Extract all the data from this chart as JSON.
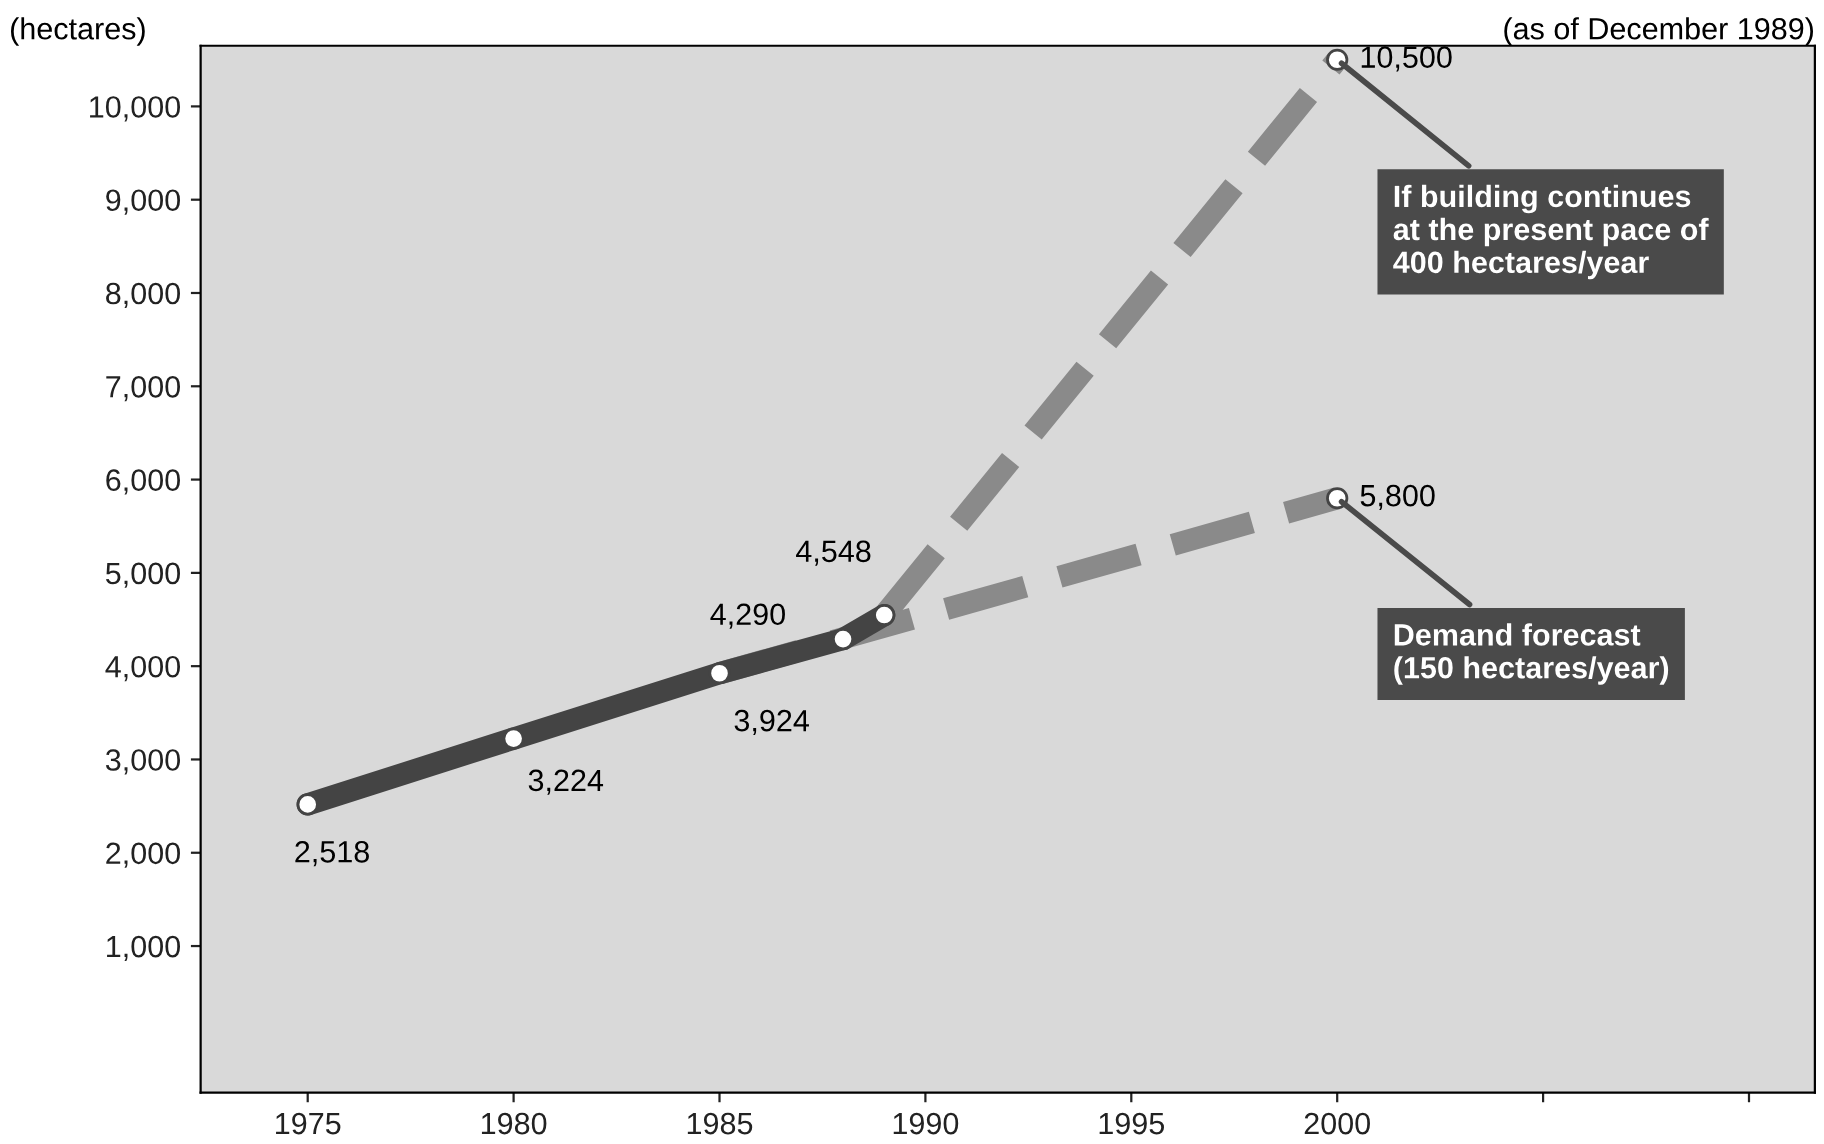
{
  "chart_data": {
    "type": "line",
    "ylabel": "(hectares)",
    "xlim": [
      1972.4,
      2011.6
    ],
    "ylim": [
      -570,
      10650
    ],
    "xticks": [
      1975,
      1980,
      1985,
      1990,
      1995,
      2000,
      {
        "value": 2005,
        "label": null
      },
      {
        "value": 2010,
        "label": null
      }
    ],
    "yticks": [
      {
        "value": 1000,
        "label": "1,000"
      },
      {
        "value": 2000,
        "label": "2,000"
      },
      {
        "value": 3000,
        "label": "3,000"
      },
      {
        "value": 4000,
        "label": "4,000"
      },
      {
        "value": 5000,
        "label": "5,000"
      },
      {
        "value": 6000,
        "label": "6,000"
      },
      {
        "value": 7000,
        "label": "7,000"
      },
      {
        "value": 8000,
        "label": "8,000"
      },
      {
        "value": 9000,
        "label": "9,000"
      },
      {
        "value": 10000,
        "label": "10,000"
      }
    ],
    "series": [
      {
        "color": "#444444",
        "line_style": "solid",
        "x": [
          1975,
          1980,
          1985,
          1988,
          1989
        ],
        "values": [
          2518,
          3224,
          3924,
          4290,
          4548
        ],
        "value_labels": [
          "2,518",
          "3,224",
          "3,924",
          "4,290",
          "4,548"
        ]
      },
      {
        "color": "#8a8a8a",
        "line_style": "dashed",
        "x": [
          1989,
          2000
        ],
        "values": [
          4548,
          10500
        ],
        "value_labels": [
          null,
          "10,500"
        ]
      },
      {
        "color": "#8a8a8a",
        "line_style": "dashed",
        "x": [
          1985,
          2000
        ],
        "values": [
          3924,
          5800
        ],
        "value_labels": [
          null,
          "5,800"
        ]
      }
    ],
    "annotations": [
      "(as of December 1989)",
      {
        "text": "If building continues\nat the present pace of\n400 hectares/year",
        "x": 2000,
        "y": 10500
      },
      {
        "text": "Demand forecast\n(150 hectares/year)",
        "x": 2000,
        "y": 5800
      }
    ],
    "marker": "circle",
    "grid": false,
    "legend": false
  }
}
